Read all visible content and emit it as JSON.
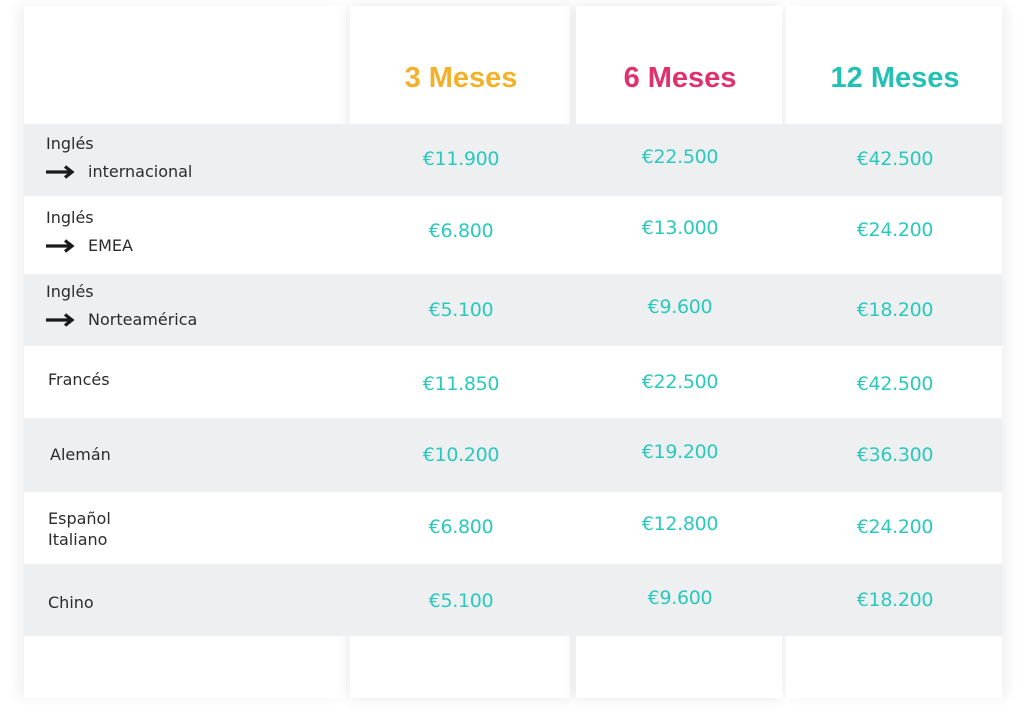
{
  "header": {
    "col1": "3 Meses",
    "col2": "6 Meses",
    "col3": "12 Meses",
    "col1_color": "#f3b12a",
    "col2_color": "#e0316f",
    "col3_color": "#23c1b3"
  },
  "rows": [
    {
      "label_line1": "Inglés",
      "label_line2": "internacional",
      "arrow": "arrow-right-icon",
      "p3": "€11.900",
      "p6": "€22.500",
      "p12": "€42.500"
    },
    {
      "label_line1": "Inglés",
      "label_line2": "EMEA",
      "arrow": "arrow-right-icon",
      "p3": "€6.800",
      "p6": "€13.000",
      "p12": "€24.200"
    },
    {
      "label_line1": "Inglés",
      "label_line2": "Norteamérica",
      "arrow": "arrow-right-icon",
      "p3": "€5.100",
      "p6": "€9.600",
      "p12": "€18.200"
    },
    {
      "label_line1": "Francés",
      "p3": "€11.850",
      "p6": "€22.500",
      "p12": "€42.500"
    },
    {
      "label_line1": "Alemán",
      "p3": "€10.200",
      "p6": "€19.200",
      "p12": "€36.300"
    },
    {
      "label_line1": "Español",
      "label_line2": "Italiano",
      "p3": "€6.800",
      "p6": "€12.800",
      "p12": "€24.200"
    },
    {
      "label_line1": "Chino",
      "p3": "€5.100",
      "p6": "€9.600",
      "p12": "€18.200"
    }
  ],
  "price_color": "#2ac9be"
}
